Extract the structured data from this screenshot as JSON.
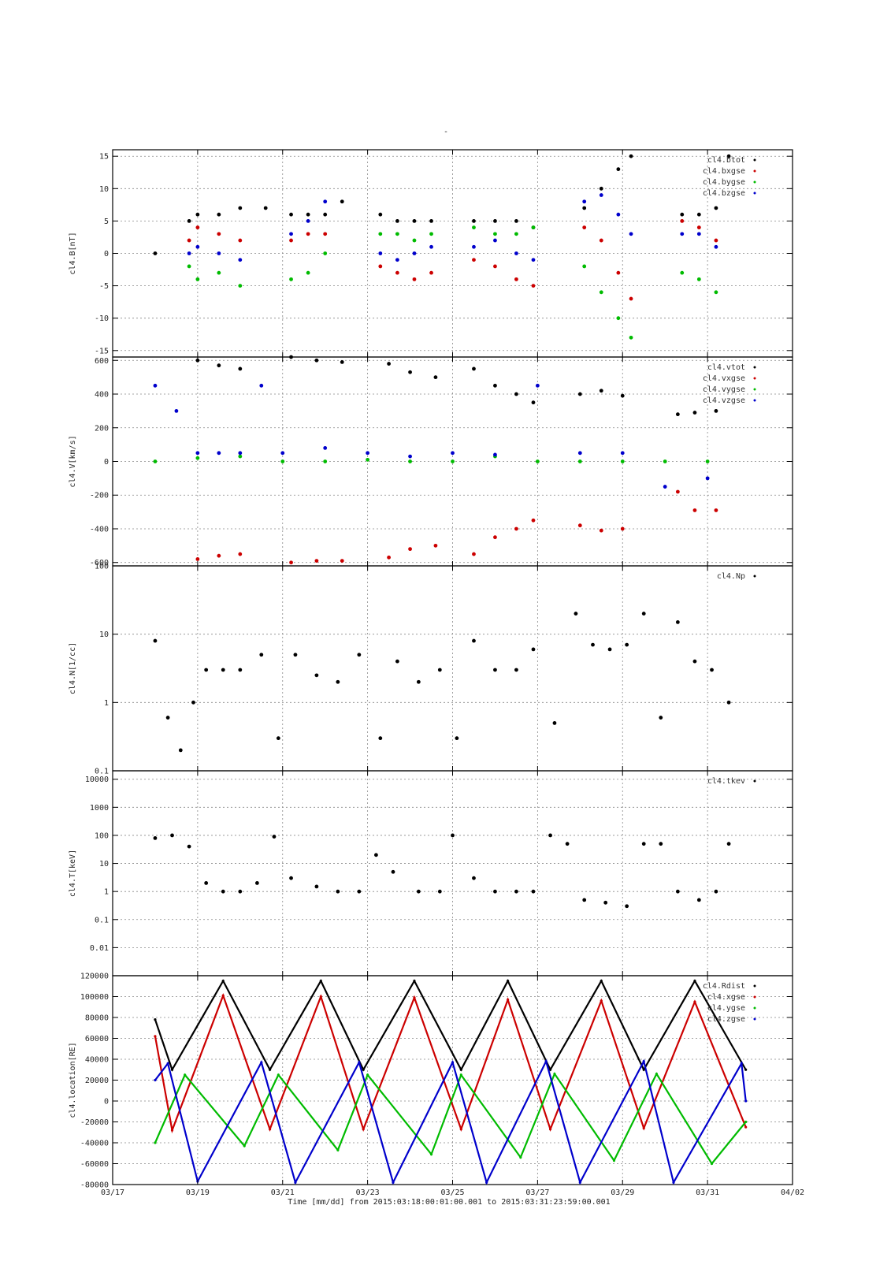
{
  "title": "-",
  "xaxis": {
    "ticks": [
      "03/17",
      "03/19",
      "03/21",
      "03/23",
      "03/25",
      "03/27",
      "03/29",
      "03/31",
      "04/02"
    ],
    "label": "Time [mm/dd]  from 2015:03:18:00:01:00.001  to  2015:03:31:23:59:00.001"
  },
  "chart_data": [
    {
      "type": "scatter",
      "ylabel": "cl4.B[nT]",
      "ylim": [
        -16,
        16
      ],
      "yticks": [
        "-15",
        "-10",
        "-5",
        "0",
        "5",
        "10",
        "15"
      ],
      "grid": true,
      "legend_placement": "top-right",
      "colors": {
        "cl4.btot": "#000000",
        "cl4.bxgse": "#cc0000",
        "cl4.bygse": "#00bb00",
        "cl4.bzgse": "#0000cc"
      },
      "series": [
        {
          "name": "cl4.btot",
          "color": "#000000",
          "x": [
            "03/18",
            "03/18.8",
            "03/19",
            "03/19.5",
            "03/20",
            "03/20.6",
            "03/21.2",
            "03/21.6",
            "03/22",
            "03/22.4",
            "03/23.3",
            "03/23.7",
            "03/24.1",
            "03/24.5",
            "03/25.5",
            "03/26",
            "03/26.5",
            "03/26.9",
            "03/28.1",
            "03/28.5",
            "03/28.9",
            "03/29.2",
            "03/30.4",
            "03/30.8",
            "03/31.2",
            "03/31.5"
          ],
          "y": [
            0,
            5,
            6,
            6,
            7,
            7,
            6,
            6,
            6,
            8,
            6,
            5,
            5,
            5,
            5,
            5,
            5,
            4,
            7,
            10,
            13,
            15,
            6,
            6,
            7,
            15
          ]
        },
        {
          "name": "cl4.bxgse",
          "color": "#cc0000",
          "x": [
            "03/18.8",
            "03/19",
            "03/19.5",
            "03/20",
            "03/21.2",
            "03/21.6",
            "03/22",
            "03/23.3",
            "03/23.7",
            "03/24.1",
            "03/24.5",
            "03/25.5",
            "03/26",
            "03/26.5",
            "03/26.9",
            "03/28.1",
            "03/28.5",
            "03/28.9",
            "03/29.2",
            "03/30.4",
            "03/30.8",
            "03/31.2"
          ],
          "y": [
            2,
            4,
            3,
            2,
            2,
            3,
            3,
            -2,
            -3,
            -4,
            -3,
            -1,
            -2,
            -4,
            -5,
            4,
            2,
            -3,
            -7,
            5,
            4,
            2
          ]
        },
        {
          "name": "cl4.bygse",
          "color": "#00bb00",
          "x": [
            "03/18.8",
            "03/19",
            "03/19.5",
            "03/20",
            "03/21.2",
            "03/21.6",
            "03/22",
            "03/23.3",
            "03/23.7",
            "03/24.1",
            "03/24.5",
            "03/25.5",
            "03/26",
            "03/26.5",
            "03/26.9",
            "03/28.1",
            "03/28.5",
            "03/28.9",
            "03/29.2",
            "03/30.4",
            "03/30.8",
            "03/31.2"
          ],
          "y": [
            -2,
            -4,
            -3,
            -5,
            -4,
            -3,
            0,
            3,
            3,
            2,
            3,
            4,
            3,
            3,
            4,
            -2,
            -6,
            -10,
            -13,
            -3,
            -4,
            -6
          ]
        },
        {
          "name": "cl4.bzgse",
          "color": "#0000cc",
          "x": [
            "03/18.8",
            "03/19",
            "03/19.5",
            "03/20",
            "03/21.2",
            "03/21.6",
            "03/22",
            "03/23.3",
            "03/23.7",
            "03/24.1",
            "03/24.5",
            "03/25.5",
            "03/26",
            "03/26.5",
            "03/26.9",
            "03/28.1",
            "03/28.5",
            "03/28.9",
            "03/29.2",
            "03/30.4",
            "03/30.8",
            "03/31.2"
          ],
          "y": [
            0,
            1,
            0,
            -1,
            3,
            5,
            8,
            0,
            -1,
            0,
            1,
            1,
            2,
            0,
            -1,
            8,
            9,
            6,
            3,
            3,
            3,
            1
          ]
        }
      ]
    },
    {
      "type": "scatter",
      "ylabel": "cl4.V[km/s]",
      "ylim": [
        -620,
        620
      ],
      "yticks": [
        "-600",
        "-400",
        "-200",
        "0",
        "200",
        "400",
        "600"
      ],
      "grid": true,
      "legend_placement": "top-right",
      "colors": {
        "cl4.vtot": "#000000",
        "cl4.vxgse": "#cc0000",
        "cl4.vygse": "#00bb00",
        "cl4.vzgse": "#0000cc"
      },
      "series": [
        {
          "name": "cl4.vtot",
          "color": "#000000",
          "x": [
            "03/19",
            "03/19.5",
            "03/20",
            "03/21.2",
            "03/21.8",
            "03/22.4",
            "03/23.5",
            "03/24",
            "03/24.6",
            "03/25.5",
            "03/26",
            "03/26.5",
            "03/26.9",
            "03/28",
            "03/28.5",
            "03/29",
            "03/30.3",
            "03/30.7",
            "03/31.2"
          ],
          "y": [
            600,
            570,
            550,
            620,
            600,
            590,
            580,
            530,
            500,
            550,
            450,
            400,
            350,
            400,
            420,
            390,
            280,
            290,
            300
          ]
        },
        {
          "name": "cl4.vxgse",
          "color": "#cc0000",
          "x": [
            "03/19",
            "03/19.5",
            "03/20",
            "03/21.2",
            "03/21.8",
            "03/22.4",
            "03/23.5",
            "03/24",
            "03/24.6",
            "03/25.5",
            "03/26",
            "03/26.5",
            "03/26.9",
            "03/28",
            "03/28.5",
            "03/29",
            "03/30.3",
            "03/30.7",
            "03/31.2"
          ],
          "y": [
            -580,
            -560,
            -550,
            -600,
            -590,
            -590,
            -570,
            -520,
            -500,
            -550,
            -450,
            -400,
            -350,
            -380,
            -410,
            -400,
            -180,
            -290,
            -290
          ]
        },
        {
          "name": "cl4.vygse",
          "color": "#00bb00",
          "x": [
            "03/18",
            "03/19",
            "03/20",
            "03/21",
            "03/22",
            "03/23",
            "03/24",
            "03/25",
            "03/26",
            "03/27",
            "03/28",
            "03/29",
            "03/30",
            "03/31"
          ],
          "y": [
            0,
            20,
            30,
            0,
            0,
            10,
            0,
            0,
            30,
            0,
            0,
            0,
            0,
            0
          ]
        },
        {
          "name": "cl4.vzgse",
          "color": "#0000cc",
          "x": [
            "03/18",
            "03/18.5",
            "03/19",
            "03/19.5",
            "03/20",
            "03/20.5",
            "03/21",
            "03/22",
            "03/23",
            "03/24",
            "03/25",
            "03/26",
            "03/27",
            "03/28",
            "03/29",
            "03/30",
            "03/31"
          ],
          "y": [
            450,
            300,
            50,
            50,
            50,
            450,
            50,
            80,
            50,
            30,
            50,
            40,
            450,
            50,
            50,
            -150,
            -100
          ]
        }
      ]
    },
    {
      "type": "scatter",
      "ylabel": "cl4.N[1/cc]",
      "yscale": "log",
      "ylim": [
        0.1,
        100
      ],
      "yticks": [
        "0.1",
        "1",
        "10",
        "100"
      ],
      "grid": true,
      "legend_placement": "top-right",
      "colors": {
        "cl4.Np": "#000000"
      },
      "series": [
        {
          "name": "cl4.Np",
          "color": "#000000",
          "x": [
            "03/18",
            "03/18.3",
            "03/18.6",
            "03/18.9",
            "03/19.2",
            "03/19.6",
            "03/20",
            "03/20.5",
            "03/20.9",
            "03/21.3",
            "03/21.8",
            "03/22.3",
            "03/22.8",
            "03/23.3",
            "03/23.7",
            "03/24.2",
            "03/24.7",
            "03/25.1",
            "03/25.5",
            "03/26",
            "03/26.5",
            "03/26.9",
            "03/27.4",
            "03/27.9",
            "03/28.3",
            "03/28.7",
            "03/29.1",
            "03/29.5",
            "03/29.9",
            "03/30.3",
            "03/30.7",
            "03/31.1",
            "03/31.5"
          ],
          "y": [
            8,
            0.6,
            0.2,
            1,
            3,
            3,
            3,
            5,
            0.3,
            5,
            2.5,
            2,
            5,
            0.3,
            4,
            2,
            3,
            0.3,
            8,
            3,
            3,
            6,
            0.5,
            20,
            7,
            6,
            7,
            20,
            0.6,
            15,
            4,
            3,
            1
          ]
        }
      ]
    },
    {
      "type": "scatter",
      "ylabel": "cl4.T[keV]",
      "yscale": "log",
      "ylim": [
        0.001,
        20000
      ],
      "yticks": [
        "0.01",
        "0.1",
        "1",
        "10",
        "100",
        "1000",
        "10000"
      ],
      "grid": true,
      "legend_placement": "top-right",
      "colors": {
        "cl4.tkev": "#000000"
      },
      "series": [
        {
          "name": "cl4.tkev",
          "color": "#000000",
          "x": [
            "03/18",
            "03/18.4",
            "03/18.8",
            "03/19.2",
            "03/19.6",
            "03/20",
            "03/20.4",
            "03/20.8",
            "03/21.2",
            "03/21.8",
            "03/22.3",
            "03/22.8",
            "03/23.2",
            "03/23.6",
            "03/24.2",
            "03/24.7",
            "03/25",
            "03/25.5",
            "03/26",
            "03/26.5",
            "03/26.9",
            "03/27.3",
            "03/27.7",
            "03/28.1",
            "03/28.6",
            "03/29.1",
            "03/29.5",
            "03/29.9",
            "03/30.3",
            "03/30.8",
            "03/31.2",
            "03/31.5"
          ],
          "y": [
            80,
            100,
            40,
            2,
            1,
            1,
            2,
            90,
            3,
            1.5,
            1,
            1,
            20,
            5,
            1,
            1,
            100,
            3,
            1,
            1,
            1,
            100,
            50,
            0.5,
            0.4,
            0.3,
            50,
            50,
            1,
            0.5,
            1,
            50
          ]
        }
      ]
    },
    {
      "type": "line",
      "ylabel": "cl4.location[RE]",
      "ylim": [
        -80000,
        120000
      ],
      "yticks": [
        "-80000",
        "-60000",
        "-40000",
        "-20000",
        "0",
        "20000",
        "40000",
        "60000",
        "80000",
        "100000",
        "120000"
      ],
      "grid": true,
      "legend_placement": "top-right",
      "colors": {
        "cl4.Rdist": "#000000",
        "cl4.xgse": "#cc0000",
        "cl4.ygse": "#00bb00",
        "cl4.zgse": "#0000cc"
      },
      "series": [
        {
          "name": "cl4.Rdist",
          "color": "#000000",
          "x": [
            "03/18",
            "03/18.4",
            "03/19.6",
            "03/20.7",
            "03/21.9",
            "03/22.9",
            "03/24.1",
            "03/25.2",
            "03/26.3",
            "03/27.3",
            "03/28.5",
            "03/29.5",
            "03/30.7",
            "03/31.9"
          ],
          "y": [
            78000,
            30000,
            115000,
            30000,
            115000,
            30000,
            115000,
            30000,
            115000,
            30000,
            115000,
            30000,
            115000,
            30000
          ]
        },
        {
          "name": "cl4.xgse",
          "color": "#cc0000",
          "x": [
            "03/18",
            "03/18.4",
            "03/19.6",
            "03/20.7",
            "03/21.9",
            "03/22.9",
            "03/24.1",
            "03/25.2",
            "03/26.3",
            "03/27.3",
            "03/28.5",
            "03/29.5",
            "03/30.7",
            "03/31.9"
          ],
          "y": [
            62000,
            -28000,
            101000,
            -27000,
            100000,
            -27000,
            99000,
            -27000,
            97000,
            -27000,
            96000,
            -26000,
            95000,
            -25000
          ]
        },
        {
          "name": "cl4.ygse",
          "color": "#00bb00",
          "x": [
            "03/18",
            "03/18.7",
            "03/20.1",
            "03/20.9",
            "03/22.3",
            "03/23",
            "03/24.5",
            "03/25.2",
            "03/26.6",
            "03/27.4",
            "03/28.8",
            "03/29.8",
            "03/31.1",
            "03/31.9"
          ],
          "y": [
            -40000,
            25000,
            -43000,
            25000,
            -47000,
            25000,
            -51000,
            25000,
            -54000,
            26000,
            -57000,
            26000,
            -60000,
            -20000
          ]
        },
        {
          "name": "cl4.zgse",
          "color": "#0000cc",
          "x": [
            "03/18",
            "03/18.3",
            "03/19",
            "03/20.5",
            "03/21.3",
            "03/22.8",
            "03/23.6",
            "03/25",
            "03/25.8",
            "03/27.2",
            "03/28",
            "03/29.5",
            "03/30.2",
            "03/31.8",
            "03/31.9"
          ],
          "y": [
            20000,
            36000,
            -77000,
            37000,
            -78000,
            37000,
            -78000,
            37000,
            -78000,
            38000,
            -78000,
            38000,
            -78000,
            36000,
            0
          ]
        }
      ]
    }
  ]
}
